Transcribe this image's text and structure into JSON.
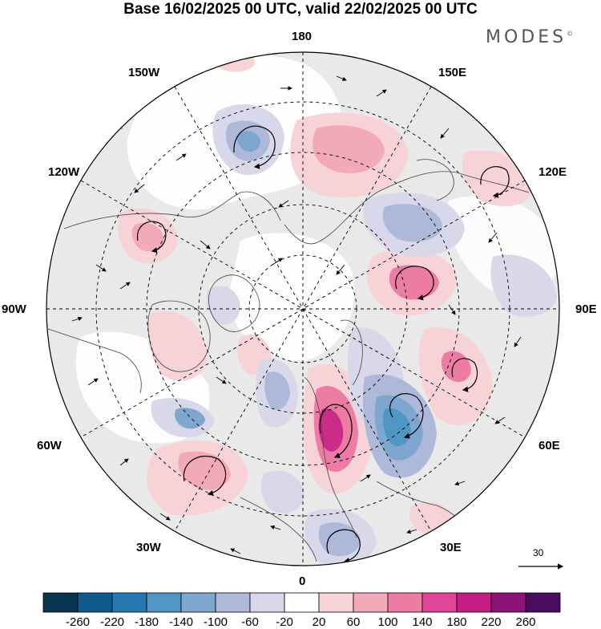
{
  "title": "Base 16/02/2025 00 UTC, valid 22/02/2025 00 UTC",
  "logo": "MODES",
  "logo_mark": "©",
  "longitude_labels": {
    "top": "180",
    "top_left": "150W",
    "top_right": "150E",
    "upper_left": "120W",
    "upper_right": "120E",
    "left": "90W",
    "right": "90E",
    "lower_left": "60W",
    "lower_right": "60E",
    "bottom_left": "30W",
    "bottom_right": "30E",
    "bottom": "0"
  },
  "reference_vector": "30",
  "colorbar": {
    "labels": [
      "-260",
      "-220",
      "-180",
      "-140",
      "-100",
      "-60",
      "-20",
      "20",
      "60",
      "100",
      "140",
      "180",
      "220",
      "260"
    ],
    "colors": [
      "#0a3350",
      "#0f5a8c",
      "#2878b0",
      "#4f96c4",
      "#7ea6cf",
      "#aeb9d9",
      "#d8d8ea",
      "#ffffff",
      "#f7d3d8",
      "#f2aab8",
      "#ec7ca4",
      "#e04597",
      "#c41e84",
      "#8c1478",
      "#4a0c5e"
    ]
  },
  "anomaly_colors": {
    "neutral_fill": "#e6e6e6",
    "negative": "#7ea6cf",
    "positive": "#ec7ca4"
  }
}
